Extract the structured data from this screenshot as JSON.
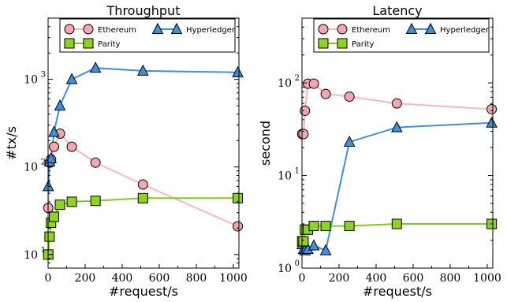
{
  "chart_data": [
    {
      "type": "line",
      "title": "Throughput",
      "xlabel": "#request/s",
      "ylabel": "#tx/s",
      "xlim": [
        0,
        1030
      ],
      "ylim": [
        7,
        5000
      ],
      "yscale": "log",
      "xticks": [
        "0",
        "200",
        "400",
        "600",
        "800",
        "1000"
      ],
      "xtick_values": [
        0,
        200,
        400,
        600,
        800,
        1000
      ],
      "yticks": [
        {
          "value": 10,
          "base": "10",
          "exp": "1"
        },
        {
          "value": 100,
          "base": "10",
          "exp": "2"
        },
        {
          "value": 1000,
          "base": "10",
          "exp": "3"
        }
      ],
      "legend": {
        "placement": "top-right",
        "ncol": 2
      },
      "series": [
        {
          "name": "Ethereum",
          "color": "#f4a7ae",
          "marker": "circle",
          "line_color": "#f7b6bc",
          "x": [
            1,
            8,
            16,
            32,
            64,
            128,
            256,
            512,
            1024
          ],
          "y": [
            34,
            112,
            122,
            170,
            240,
            170,
            112,
            63,
            21
          ]
        },
        {
          "name": "Hyperledger",
          "color": "#3f8fe0",
          "marker": "triangle",
          "line_color": "#3f8fe0",
          "x": [
            1,
            8,
            16,
            32,
            64,
            128,
            256,
            512,
            1024
          ],
          "y": [
            60,
            115,
            125,
            250,
            500,
            1000,
            1350,
            1250,
            1200
          ]
        },
        {
          "name": "Parity",
          "color": "#8fd321",
          "marker": "square",
          "line_color": "#7ecb1a",
          "x": [
            1,
            8,
            16,
            32,
            64,
            128,
            256,
            512,
            1024
          ],
          "y": [
            10,
            16,
            23,
            27,
            37,
            40,
            41,
            44,
            44
          ]
        }
      ]
    },
    {
      "type": "line",
      "title": "Latency",
      "xlabel": "#request/s",
      "ylabel": "second",
      "xlim": [
        0,
        1030
      ],
      "ylim": [
        1,
        500
      ],
      "yscale": "log",
      "xticks": [
        "0",
        "200",
        "400",
        "600",
        "800",
        "1000"
      ],
      "xtick_values": [
        0,
        200,
        400,
        600,
        800,
        1000
      ],
      "yticks": [
        {
          "value": 1,
          "base": "10",
          "exp": "0"
        },
        {
          "value": 10,
          "base": "10",
          "exp": "1"
        },
        {
          "value": 100,
          "base": "10",
          "exp": "2"
        }
      ],
      "legend": {
        "placement": "top-right",
        "ncol": 2
      },
      "series": [
        {
          "name": "Ethereum",
          "color": "#f4a7ae",
          "marker": "circle",
          "line_color": "#f7b6bc",
          "x": [
            1,
            8,
            16,
            32,
            64,
            128,
            256,
            512,
            1024
          ],
          "y": [
            28,
            28,
            50,
            98,
            98,
            76,
            71,
            60,
            52
          ]
        },
        {
          "name": "Hyperledger",
          "color": "#3f8fe0",
          "marker": "triangle",
          "line_color": "#3f8fe0",
          "x": [
            1,
            8,
            16,
            32,
            64,
            128,
            256,
            512,
            1024
          ],
          "y": [
            1.8,
            1.6,
            1.55,
            1.6,
            1.75,
            1.55,
            23,
            33,
            37
          ]
        },
        {
          "name": "Parity",
          "color": "#8fd321",
          "marker": "square",
          "line_color": "#7ecb1a",
          "x": [
            1,
            8,
            16,
            32,
            64,
            128,
            256,
            512,
            1024
          ],
          "y": [
            1.95,
            1.95,
            2.6,
            2.6,
            2.85,
            2.85,
            2.85,
            3.0,
            3.0
          ]
        }
      ]
    }
  ]
}
